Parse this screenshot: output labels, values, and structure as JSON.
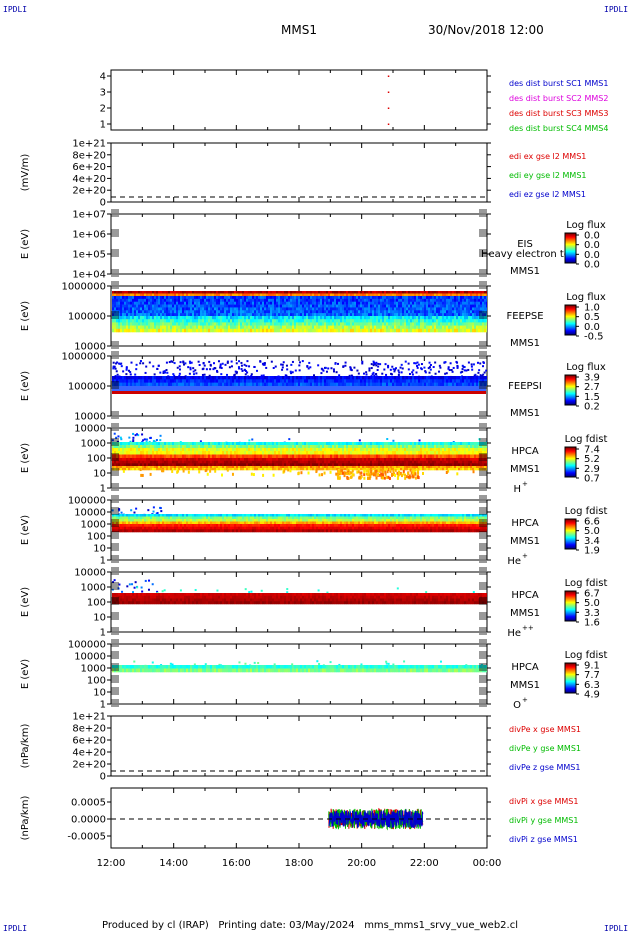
{
  "corner_marks": {
    "top_left": "IPDLI",
    "top_right": "IPDLI",
    "bottom_left": "IPDLI",
    "bottom_right": "IPDLI"
  },
  "header": {
    "title": "MMS1",
    "date": "30/Nov/2018 12:00"
  },
  "footer": {
    "text": "Produced by cl (IRAP)   Printing date: 03/May/2024   mms_mms1_srvy_vue_web2.cl"
  },
  "colors": {
    "blue": "#0000cc",
    "magenta": "#dd00dd",
    "red": "#dd0000",
    "green": "#00bb00"
  },
  "chart_data": {
    "type": "stacked time-series panels",
    "x_ticks": [
      "12:00",
      "14:00",
      "16:00",
      "18:00",
      "20:00",
      "22:00",
      "00:00"
    ],
    "panels": [
      {
        "id": "des",
        "type": "scatter",
        "y_ticks": [
          "4",
          "3",
          "2",
          "1"
        ],
        "legend": [
          {
            "text": "des dist burst SC1 MMS1",
            "color": "blue"
          },
          {
            "text": "des dist burst SC2 MMS2",
            "color": "magenta"
          },
          {
            "text": "des dist burst SC3 MMS3",
            "color": "red"
          },
          {
            "text": "des dist burst SC4 MMS4",
            "color": "green"
          }
        ],
        "points": [
          {
            "x": 20.85,
            "y": 4
          },
          {
            "x": 20.85,
            "y": 3
          },
          {
            "x": 20.85,
            "y": 2
          },
          {
            "x": 20.85,
            "y": 1
          }
        ]
      },
      {
        "id": "edi",
        "type": "line",
        "ylabel": "(mV/m)",
        "y_ticks": [
          "1e+21",
          "8e+20",
          "6e+20",
          "4e+20",
          "2e+20",
          "0"
        ],
        "legend": [
          {
            "text": "edi ex gse l2 MMS1",
            "color": "red"
          },
          {
            "text": "edi ey gse l2 MMS1",
            "color": "green"
          },
          {
            "text": "edi ez gse l2 MMS1",
            "color": "blue"
          }
        ]
      },
      {
        "id": "eis",
        "type": "heatmap",
        "ylabel": "E (eV)",
        "y_ticks": [
          "1e+07",
          "1e+06",
          "1e+05",
          "1e+04"
        ],
        "labels": [
          "EIS",
          "MMS1"
        ],
        "overlay": "Heavy electron to",
        "colorbar_title": "Log flux",
        "colorbar_ticks": [
          "0.0",
          "0.0",
          "0.0",
          "0.0"
        ]
      },
      {
        "id": "feepse",
        "type": "heatmap",
        "ylabel": "E (eV)",
        "y_ticks": [
          "1000000",
          "100000",
          "10000"
        ],
        "labels": [
          "FEEPSE",
          "MMS1"
        ],
        "colorbar_title": "Log flux",
        "colorbar_ticks": [
          "1.0",
          "0.5",
          "0.0",
          "-0.5"
        ]
      },
      {
        "id": "feepsi",
        "type": "heatmap",
        "ylabel": "E (eV)",
        "y_ticks": [
          "1000000",
          "100000",
          "10000"
        ],
        "labels": [
          "FEEPSI",
          "MMS1"
        ],
        "colorbar_title": "Log flux",
        "colorbar_ticks": [
          "3.9",
          "2.7",
          "1.5",
          "0.2"
        ]
      },
      {
        "id": "hpca_h",
        "type": "heatmap",
        "ylabel": "E (eV)",
        "y_ticks": [
          "10000",
          "1000",
          "100",
          "10",
          "1"
        ],
        "labels": [
          "HPCA",
          "MMS1"
        ],
        "species": "H",
        "species_sup": "+",
        "colorbar_title": "Log fdist",
        "colorbar_ticks": [
          "7.4",
          "5.2",
          "2.9",
          "0.7"
        ]
      },
      {
        "id": "hpca_he",
        "type": "heatmap",
        "ylabel": "E (eV)",
        "y_ticks": [
          "100000",
          "10000",
          "1000",
          "100",
          "10",
          "1"
        ],
        "labels": [
          "HPCA",
          "MMS1"
        ],
        "species": "He",
        "species_sup": "+",
        "colorbar_title": "Log fdist",
        "colorbar_ticks": [
          "6.6",
          "5.0",
          "3.4",
          "1.9"
        ]
      },
      {
        "id": "hpca_he2",
        "type": "heatmap",
        "ylabel": "E (eV)",
        "y_ticks": [
          "10000",
          "1000",
          "100",
          "10",
          "1"
        ],
        "labels": [
          "HPCA",
          "MMS1"
        ],
        "species": "He",
        "species_sup": "++",
        "colorbar_title": "Log fdist",
        "colorbar_ticks": [
          "6.7",
          "5.0",
          "3.3",
          "1.6"
        ]
      },
      {
        "id": "hpca_o",
        "type": "heatmap",
        "ylabel": "E (eV)",
        "y_ticks": [
          "100000",
          "10000",
          "1000",
          "100",
          "10",
          "1"
        ],
        "labels": [
          "HPCA",
          "MMS1"
        ],
        "species": "O",
        "species_sup": "+",
        "colorbar_title": "Log fdist",
        "colorbar_ticks": [
          "9.1",
          "7.7",
          "6.3",
          "4.9"
        ]
      },
      {
        "id": "divpe",
        "type": "line",
        "ylabel": "(nPa/km)",
        "y_ticks": [
          "1e+21",
          "8e+20",
          "6e+20",
          "4e+20",
          "2e+20",
          "0"
        ],
        "legend": [
          {
            "text": "divPe x gse MMS1",
            "color": "red"
          },
          {
            "text": "divPe y gse MMS1",
            "color": "green"
          },
          {
            "text": "divPe z gse MMS1",
            "color": "blue"
          }
        ]
      },
      {
        "id": "divpi",
        "type": "line",
        "ylabel": "(nPa/km)",
        "y_ticks": [
          "0.0005",
          "0.0000",
          "-0.0005"
        ],
        "ylim": [
          -0.0008,
          0.0008
        ],
        "data_range_hours": [
          18.95,
          21.95
        ],
        "amplitude": 0.0003,
        "legend": [
          {
            "text": "divPi x gse MMS1",
            "color": "red"
          },
          {
            "text": "divPi y gse MMS1",
            "color": "green"
          },
          {
            "text": "divPi z gse MMS1",
            "color": "blue"
          }
        ]
      }
    ]
  }
}
